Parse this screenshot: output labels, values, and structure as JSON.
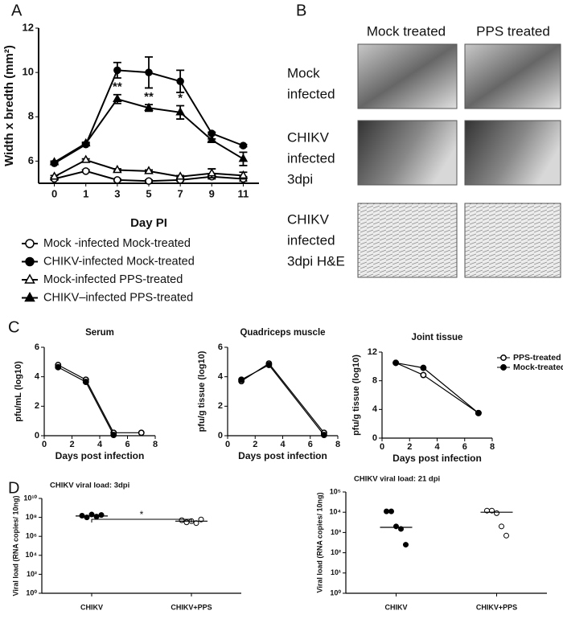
{
  "panel_labels": [
    "A",
    "B",
    "C",
    "D"
  ],
  "photo_panel": {
    "columns": [
      "Mock treated",
      "PPS treated"
    ],
    "rows": [
      [
        "Mock",
        "infected"
      ],
      [
        "CHIKV",
        "infected",
        "3dpi"
      ],
      [
        "CHIKV",
        "infected",
        "3dpi H&E"
      ]
    ]
  },
  "chart_data": [
    {
      "type": "line",
      "y_label": "Width x bredth (mm²)",
      "x_label": "Day PI",
      "categories": [
        "0",
        "1",
        "3",
        "5",
        "7",
        "9",
        "11"
      ],
      "ylim": [
        5,
        12
      ],
      "yticks": [
        6,
        8,
        10,
        12
      ],
      "legend": "below",
      "series": [
        {
          "name": "Mock -infected Mock-treated",
          "color": "#000",
          "fill": "#fff",
          "marker": "circle",
          "values": [
            5.2,
            5.55,
            5.15,
            5.1,
            5.15,
            5.3,
            5.2
          ],
          "errors": [
            0.05,
            0.05,
            0.05,
            0.05,
            0.05,
            0.1,
            0.1
          ]
        },
        {
          "name": "CHIKV-infected Mock-treated",
          "color": "#000",
          "fill": "#000",
          "marker": "circle",
          "values": [
            5.9,
            6.75,
            10.1,
            10.0,
            9.6,
            7.25,
            6.7
          ],
          "errors": [
            0.05,
            0.05,
            0.35,
            0.7,
            0.5,
            0.05,
            0.05
          ]
        },
        {
          "name": "Mock-infected PPS-treated",
          "color": "#000",
          "fill": "#fff",
          "marker": "triangle",
          "values": [
            5.3,
            6.05,
            5.6,
            5.55,
            5.3,
            5.45,
            5.35
          ],
          "errors": [
            0.05,
            0.05,
            0.05,
            0.05,
            0.05,
            0.2,
            0.15
          ]
        },
        {
          "name": "CHIKV–infected PPS-treated",
          "color": "#000",
          "fill": "#000",
          "marker": "triangle",
          "values": [
            5.95,
            6.8,
            8.8,
            8.4,
            8.2,
            6.95,
            6.1
          ],
          "errors": [
            0.05,
            0.05,
            0.2,
            0.15,
            0.3,
            0.05,
            0.3
          ]
        }
      ],
      "annotations": [
        {
          "text": "**",
          "x": "3"
        },
        {
          "text": "**",
          "x": "5"
        },
        {
          "text": "*",
          "x": "7"
        }
      ]
    },
    {
      "type": "line",
      "title": "Serum",
      "y_label": "pfu/mL (log10)",
      "x_label": "Days post infection",
      "x": [
        1,
        3,
        5,
        7
      ],
      "xlim": [
        0,
        8
      ],
      "xticks": [
        0,
        2,
        4,
        6,
        8
      ],
      "ylim": [
        0,
        6
      ],
      "yticks": [
        0,
        2,
        4,
        6
      ],
      "series": [
        {
          "name": "PPS-treated",
          "color": "#000",
          "fill": "#fff",
          "marker": "circle",
          "values": [
            4.8,
            3.8,
            0.2,
            0.2
          ]
        },
        {
          "name": "Mock-treated",
          "color": "#000",
          "fill": "#000",
          "marker": "circle",
          "values": [
            4.65,
            3.65,
            0.05,
            null
          ]
        }
      ]
    },
    {
      "type": "line",
      "title": "Quadriceps muscle",
      "y_label": "pfu/g tissue (log10)",
      "x_label": "Days post infection",
      "x": [
        1,
        3,
        7
      ],
      "xlim": [
        0,
        8
      ],
      "xticks": [
        0,
        2,
        4,
        6,
        8
      ],
      "ylim": [
        0,
        6
      ],
      "yticks": [
        0,
        2,
        4,
        6
      ],
      "series": [
        {
          "name": "PPS-treated",
          "color": "#000",
          "fill": "#fff",
          "marker": "circle",
          "values": [
            3.7,
            4.9,
            0.2
          ]
        },
        {
          "name": "Mock-treated",
          "color": "#000",
          "fill": "#000",
          "marker": "circle",
          "values": [
            3.8,
            4.8,
            0.05
          ]
        }
      ]
    },
    {
      "type": "line",
      "title": "Joint tissue",
      "y_label": "pfu/g tissue (log10)",
      "x_label": "Days post infection",
      "x": [
        1,
        3,
        7
      ],
      "xlim": [
        0,
        8
      ],
      "xticks": [
        0,
        2,
        4,
        6,
        8
      ],
      "ylim": [
        0,
        12
      ],
      "yticks": [
        0,
        4,
        8,
        12
      ],
      "legend": "right",
      "series": [
        {
          "name": "PPS-treated",
          "color": "#000",
          "fill": "#fff",
          "marker": "circle",
          "values": [
            10.5,
            8.8,
            3.5
          ]
        },
        {
          "name": "Mock-treated",
          "color": "#000",
          "fill": "#000",
          "marker": "circle",
          "values": [
            10.5,
            9.8,
            3.5
          ]
        }
      ]
    },
    {
      "type": "strip",
      "title": "CHIKV viral load: 3dpi",
      "y_label": "Viral load (RNA copies/ 10ng)",
      "log_y": true,
      "categories": [
        "CHIKV",
        "CHIKV+PPS"
      ],
      "ylim": [
        1,
        10000000000
      ],
      "yticks": [
        {
          "value": 1,
          "label": "10⁰"
        },
        {
          "value": 100,
          "label": "10²"
        },
        {
          "value": 10000,
          "label": "10⁴"
        },
        {
          "value": 1000000,
          "label": "10⁶"
        },
        {
          "value": 100000000,
          "label": "10⁸"
        },
        {
          "value": 10000000000,
          "label": "10¹⁰"
        }
      ],
      "values": [
        [
          150000000,
          100000000,
          200000000,
          120000000,
          180000000
        ],
        [
          50000000,
          30000000,
          40000000,
          25000000,
          60000000
        ]
      ],
      "means": [
        140000000,
        40000000
      ],
      "fills": [
        "#000",
        "#fff"
      ],
      "annotations": [
        {
          "text": "*"
        }
      ]
    },
    {
      "type": "strip",
      "title": "CHIKV viral load: 21 dpi",
      "y_label": "Viral load (RNA copies/ 10ng)",
      "log_y": true,
      "categories": [
        "CHIKV",
        "CHIKV+PPS"
      ],
      "ylim": [
        1,
        100000
      ],
      "yticks": [
        {
          "value": 1,
          "label": "10⁰"
        },
        {
          "value": 10,
          "label": "10¹"
        },
        {
          "value": 100,
          "label": "10²"
        },
        {
          "value": 1000,
          "label": "10³"
        },
        {
          "value": 10000,
          "label": "10⁴"
        },
        {
          "value": 100000,
          "label": "10⁵"
        }
      ],
      "values": [
        [
          11000,
          11000,
          2000,
          1500,
          250
        ],
        [
          12000,
          12000,
          9000,
          2000,
          700
        ]
      ],
      "means": [
        1800,
        10000
      ],
      "fills": [
        "#000",
        "#fff"
      ]
    }
  ]
}
